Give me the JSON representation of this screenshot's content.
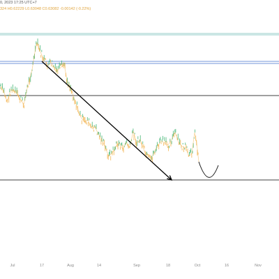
{
  "header": {
    "info": "0, 2023 17:25 UTC+7",
    "ohlc": "324  H0.62229  L0.63048  C0.63082  -0.00142 (-0.22%)"
  },
  "colors": {
    "price_up": "#3cb371",
    "price_down": "#f2b14a",
    "hline": "#2b2b2b",
    "resistance": "#2d63c8",
    "top_band": "#3aa39a",
    "arrow": "#000000",
    "tick_text": "#8a8a8a"
  },
  "chart_data": {
    "type": "line",
    "title": "",
    "xlabel": "",
    "ylabel": "",
    "x_ticks": [
      "Jul",
      "17",
      "Aug",
      "14",
      "Sep",
      "18",
      "Oct",
      "16",
      "Nov"
    ],
    "horizontal_levels": [
      {
        "name": "top",
        "style": "band"
      },
      {
        "name": "resistance",
        "style": "double"
      },
      {
        "name": "mid",
        "style": "line"
      },
      {
        "name": "support",
        "style": "line"
      }
    ],
    "price_path": [
      [
        0,
        125
      ],
      [
        5,
        130
      ],
      [
        10,
        145
      ],
      [
        16,
        128
      ],
      [
        22,
        132
      ],
      [
        28,
        140
      ],
      [
        34,
        150
      ],
      [
        40,
        122
      ],
      [
        46,
        100
      ],
      [
        50,
        75
      ],
      [
        53,
        62
      ],
      [
        57,
        72
      ],
      [
        62,
        84
      ],
      [
        68,
        94
      ],
      [
        74,
        90
      ],
      [
        80,
        102
      ],
      [
        86,
        98
      ],
      [
        92,
        92
      ],
      [
        96,
        115
      ],
      [
        101,
        125
      ],
      [
        106,
        140
      ],
      [
        111,
        155
      ],
      [
        116,
        168
      ],
      [
        121,
        175
      ],
      [
        126,
        172
      ],
      [
        131,
        184
      ],
      [
        136,
        182
      ],
      [
        141,
        192
      ],
      [
        146,
        200
      ],
      [
        151,
        212
      ],
      [
        156,
        224
      ],
      [
        161,
        219
      ],
      [
        166,
        210
      ],
      [
        171,
        205
      ],
      [
        176,
        214
      ],
      [
        181,
        204
      ],
      [
        186,
        212
      ],
      [
        191,
        188
      ],
      [
        196,
        205
      ],
      [
        201,
        200
      ],
      [
        206,
        214
      ],
      [
        211,
        226
      ],
      [
        216,
        230
      ],
      [
        221,
        218
      ],
      [
        226,
        210
      ],
      [
        231,
        202
      ],
      [
        236,
        205
      ],
      [
        241,
        208
      ],
      [
        246,
        200
      ],
      [
        251,
        190
      ],
      [
        256,
        204
      ],
      [
        261,
        210
      ],
      [
        266,
        212
      ],
      [
        271,
        224
      ],
      [
        275,
        220
      ],
      [
        279,
        190
      ],
      [
        282,
        205
      ],
      [
        285,
        232
      ]
    ],
    "projection": [
      [
        285,
        232
      ],
      [
        296,
        258
      ],
      [
        305,
        250
      ],
      [
        313,
        237
      ]
    ],
    "trend_arrow": {
      "from": [
        60,
        88
      ],
      "to": [
        246,
        258
      ]
    }
  }
}
